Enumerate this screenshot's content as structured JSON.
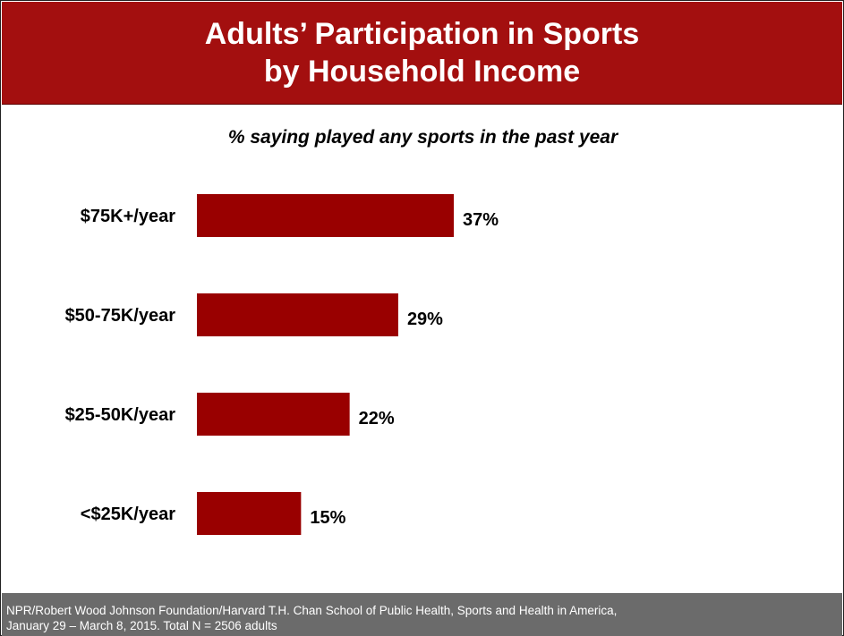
{
  "header": {
    "title_line1": "Adults’ Participation in Sports",
    "title_line2": "by Household Income"
  },
  "colors": {
    "accent": "#a30f0f",
    "bar": "#990000",
    "footer_bg": "#6b6b6b"
  },
  "chart_data": {
    "type": "bar",
    "orientation": "horizontal",
    "subtitle": "% saying played any sports in the past year",
    "categories": [
      "$75K+/year",
      "$50-75K/year",
      "$25-50K/year",
      "<$25K/year"
    ],
    "values": [
      37,
      29,
      22,
      15
    ],
    "value_labels": [
      "37%",
      "29%",
      "22%",
      "15%"
    ],
    "xlim": [
      0,
      100
    ],
    "grid": false,
    "legend": "none"
  },
  "footer": {
    "line1": "NPR/Robert Wood Johnson Foundation/Harvard T.H. Chan School of Public Health, Sports and Health in America,",
    "line2": "January 29 – March 8, 2015. Total N = 2506 adults"
  }
}
